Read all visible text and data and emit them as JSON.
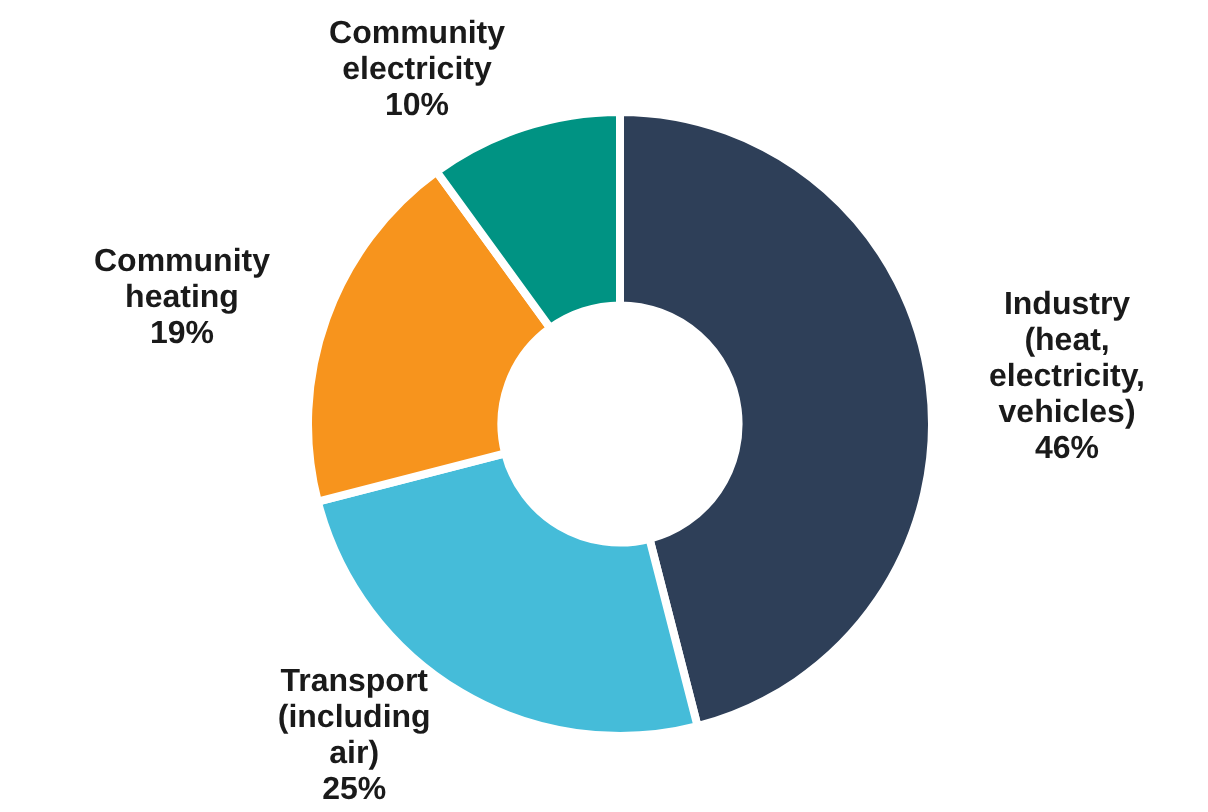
{
  "chart_data": {
    "type": "donut",
    "categories": [
      "Industry (heat, electricity, vehicles)",
      "Transport (including air)",
      "Community heating",
      "Community electricity"
    ],
    "values": [
      46,
      25,
      19,
      10
    ],
    "colors": [
      "#2e3f58",
      "#45bcd9",
      "#f7941d",
      "#009383"
    ],
    "value_labels": [
      "46%",
      "25%",
      "19%",
      "10%"
    ],
    "legend": false
  }
}
